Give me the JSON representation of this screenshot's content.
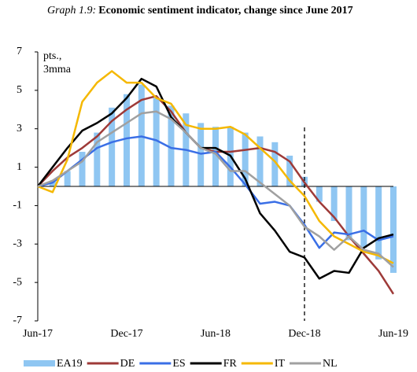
{
  "chart_data": {
    "type": "bar_line",
    "title_prefix": "Graph 1.9:",
    "title": "Economic sentiment indicator, change since June 2017",
    "annotation": [
      "pts.,",
      "3mma"
    ],
    "categories": [
      "Jun-17",
      null,
      null,
      null,
      null,
      null,
      "Dec-17",
      null,
      null,
      null,
      null,
      null,
      "Jun-18",
      null,
      null,
      null,
      null,
      null,
      "Dec-18",
      null,
      null,
      null,
      null,
      null,
      "Jun-19"
    ],
    "vline": "Dec-18",
    "ylim": [
      -7,
      7
    ],
    "yticks": [
      7,
      5,
      3,
      1,
      -1,
      -3,
      -5,
      -7
    ],
    "series": [
      {
        "name": "EA19",
        "kind": "bar",
        "color": "#8fc6f2",
        "values": [
          0,
          0.3,
          0.8,
          1.8,
          2.8,
          4.1,
          4.8,
          5.3,
          4.6,
          4.2,
          3.8,
          3.3,
          3.1,
          3.1,
          2.8,
          2.6,
          2.3,
          1.6,
          0.5,
          -0.8,
          -1.8,
          -2.8,
          -3.2,
          -3.8,
          -4.5
        ]
      },
      {
        "name": "DE",
        "kind": "line",
        "color": "#9e3a38",
        "values": [
          0,
          0.8,
          1.5,
          2.0,
          2.6,
          3.4,
          4.0,
          4.5,
          4.7,
          3.9,
          2.8,
          2.0,
          1.8,
          1.8,
          1.9,
          2.0,
          1.8,
          1.3,
          0.2,
          -0.8,
          -1.6,
          -2.6,
          -3.5,
          -4.4,
          -5.6
        ]
      },
      {
        "name": "ES",
        "kind": "line",
        "color": "#3a6fe6",
        "values": [
          0,
          0.2,
          0.8,
          1.4,
          2.0,
          2.3,
          2.5,
          2.6,
          2.4,
          2.0,
          1.9,
          1.7,
          1.8,
          1.0,
          0.1,
          -0.9,
          -0.8,
          -1.0,
          -2.0,
          -3.2,
          -2.4,
          -2.5,
          -2.3,
          -2.8,
          -2.6
        ]
      },
      {
        "name": "FR",
        "kind": "line",
        "color": "#000000",
        "values": [
          0,
          1.0,
          2.0,
          2.9,
          3.3,
          3.8,
          4.6,
          5.6,
          5.2,
          3.6,
          2.8,
          2.0,
          2.0,
          1.6,
          0.4,
          -1.4,
          -2.3,
          -3.4,
          -3.7,
          -4.8,
          -4.4,
          -4.5,
          -3.2,
          -2.7,
          -2.5
        ]
      },
      {
        "name": "IT",
        "kind": "line",
        "color": "#f5b800",
        "values": [
          0,
          -0.3,
          1.4,
          4.4,
          5.4,
          6.0,
          5.4,
          5.4,
          4.6,
          4.3,
          3.2,
          3.0,
          3.0,
          3.1,
          2.7,
          2.0,
          1.3,
          0.3,
          -0.5,
          -1.8,
          -2.6,
          -3.0,
          -3.4,
          -3.6,
          -4.0
        ]
      },
      {
        "name": "NL",
        "kind": "line",
        "color": "#a0a0a0",
        "values": [
          0,
          0.3,
          0.8,
          1.3,
          2.3,
          2.8,
          3.3,
          3.8,
          3.9,
          3.5,
          2.8,
          2.0,
          1.7,
          0.8,
          0.8,
          0.2,
          -0.4,
          -1.0,
          -2.1,
          -2.6,
          -3.3,
          -2.6,
          -3.3,
          -3.5,
          -4.2
        ]
      }
    ]
  }
}
